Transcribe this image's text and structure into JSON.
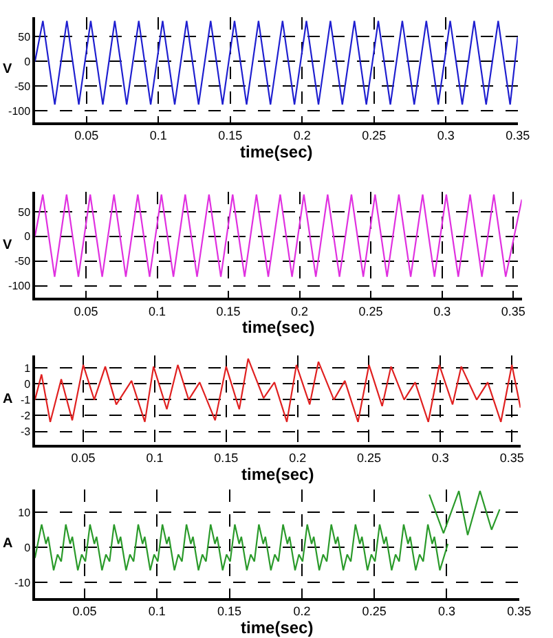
{
  "chart_data": [
    {
      "type": "line",
      "xlabel": "time(sec)",
      "ylabel": "V",
      "xlim": [
        0.0142,
        0.35
      ],
      "ylim": [
        -123,
        90
      ],
      "xticks": [
        0.05,
        0.1,
        0.15,
        0.2,
        0.25,
        0.3,
        0.35
      ],
      "yticks": [
        50,
        0,
        -50,
        -100
      ],
      "grid": true,
      "x": [
        0.0142,
        0.0197,
        0.028,
        0.0364,
        0.0447,
        0.053,
        0.0614,
        0.0697,
        0.078,
        0.0864,
        0.0947,
        0.103,
        0.1114,
        0.1197,
        0.128,
        0.1364,
        0.1447,
        0.153,
        0.1614,
        0.1697,
        0.178,
        0.1864,
        0.1947,
        0.203,
        0.2114,
        0.2197,
        0.228,
        0.2364,
        0.2447,
        0.253,
        0.2614,
        0.2697,
        0.278,
        0.2864,
        0.2947,
        0.303,
        0.3114,
        0.3197,
        0.328,
        0.3364,
        0.3447,
        0.35
      ],
      "series": [
        {
          "color": "#1f1fd0",
          "values": [
            0,
            82,
            -87,
            82,
            -87,
            82,
            -87,
            82,
            -87,
            82,
            -87,
            82,
            -87,
            82,
            -87,
            82,
            -87,
            82,
            -87,
            82,
            -87,
            82,
            -87,
            82,
            -87,
            82,
            -87,
            82,
            -87,
            82,
            -87,
            82,
            -87,
            82,
            -87,
            82,
            -87,
            82,
            -87,
            82,
            -87,
            50
          ]
        }
      ]
    },
    {
      "type": "line",
      "xlabel": "time(sec)",
      "ylabel": "V",
      "xlim": [
        0.0142,
        0.356
      ],
      "ylim": [
        -125,
        90
      ],
      "xticks": [
        0.05,
        0.1,
        0.15,
        0.2,
        0.25,
        0.3,
        0.35
      ],
      "yticks": [
        50,
        0,
        -50,
        -100
      ],
      "grid": true,
      "x": [
        0.0142,
        0.0197,
        0.028,
        0.0364,
        0.0447,
        0.053,
        0.0614,
        0.0697,
        0.078,
        0.0864,
        0.0947,
        0.103,
        0.1114,
        0.1197,
        0.128,
        0.1364,
        0.1447,
        0.153,
        0.1614,
        0.1697,
        0.178,
        0.1864,
        0.1947,
        0.203,
        0.2114,
        0.2197,
        0.228,
        0.2364,
        0.2447,
        0.253,
        0.2614,
        0.2697,
        0.278,
        0.2864,
        0.2947,
        0.303,
        0.3114,
        0.3197,
        0.328,
        0.3364,
        0.3447,
        0.356
      ],
      "series": [
        {
          "color": "#e030e0",
          "values": [
            0,
            85,
            -82,
            85,
            -82,
            85,
            -82,
            85,
            -82,
            85,
            -82,
            85,
            -82,
            85,
            -82,
            85,
            -82,
            85,
            -82,
            85,
            -82,
            85,
            -82,
            85,
            -82,
            85,
            -82,
            85,
            -82,
            85,
            -82,
            85,
            -82,
            85,
            -82,
            85,
            -82,
            85,
            -82,
            85,
            -82,
            75
          ]
        }
      ]
    },
    {
      "type": "line",
      "xlabel": "time(sec)",
      "ylabel": "A",
      "xlim": [
        0.0162,
        0.356
      ],
      "ylim": [
        -3.83,
        1.8
      ],
      "xticks": [
        0.05,
        0.1,
        0.15,
        0.2,
        0.25,
        0.3,
        0.35
      ],
      "yticks": [
        1,
        0,
        -1,
        -2,
        -3
      ],
      "grid": true,
      "x": [
        0.0162,
        0.0208,
        0.0269,
        0.0346,
        0.0423,
        0.05,
        0.0577,
        0.0654,
        0.0731,
        0.0838,
        0.0931,
        0.0992,
        0.1085,
        0.1162,
        0.1238,
        0.1315,
        0.1423,
        0.15,
        0.1592,
        0.1654,
        0.1762,
        0.1838,
        0.1925,
        0.1992,
        0.2085,
        0.2146,
        0.2254,
        0.2331,
        0.2423,
        0.25,
        0.2592,
        0.2654,
        0.2746,
        0.2823,
        0.2915,
        0.2992,
        0.3085,
        0.3146,
        0.3254,
        0.3331,
        0.3423,
        0.35,
        0.356
      ],
      "series": [
        {
          "color": "#e02020",
          "values": [
            -1,
            0.6,
            -2.4,
            0.3,
            -2.3,
            1.2,
            -1.0,
            1.1,
            -1.3,
            0.2,
            -2.4,
            1.1,
            -1.6,
            1.2,
            -1.0,
            0.1,
            -2.3,
            1.1,
            -1.6,
            1.6,
            -0.9,
            0.1,
            -2.4,
            1.2,
            -1.3,
            1.4,
            -1.0,
            0.2,
            -2.4,
            1.2,
            -1.4,
            1.1,
            -1.0,
            0.1,
            -2.4,
            1.2,
            -1.3,
            1.1,
            -1.0,
            0.1,
            -2.4,
            1.2,
            -1.5
          ]
        }
      ]
    },
    {
      "type": "line",
      "xlabel": "time(sec)",
      "ylabel": "A",
      "xlim": [
        0.0157,
        0.35
      ],
      "ylim": [
        -14.4,
        16.5
      ],
      "xticks": [
        0.05,
        0.1,
        0.15,
        0.2,
        0.25,
        0.3,
        0.35
      ],
      "yticks": [
        10,
        0,
        -10
      ],
      "grid": true,
      "series": [
        {
          "color": "#2a9a2a",
          "x": [
            0.0157,
            0.0203,
            0.0233,
            0.0248,
            0.0286,
            0.0313,
            0.0338,
            0.037,
            0.04,
            0.0415,
            0.0453,
            0.048,
            0.0505,
            0.0537,
            0.0567,
            0.0582,
            0.062,
            0.0647,
            0.0672,
            0.0703,
            0.0733,
            0.0748,
            0.0786,
            0.0813,
            0.0838,
            0.087,
            0.09,
            0.0915,
            0.0953,
            0.098,
            0.1005,
            0.1037,
            0.1067,
            0.1082,
            0.112,
            0.1147,
            0.1172,
            0.1203,
            0.1233,
            0.1248,
            0.1286,
            0.1313,
            0.1338,
            0.137,
            0.14,
            0.1415,
            0.1453,
            0.148,
            0.1505,
            0.1537,
            0.1567,
            0.1582,
            0.162,
            0.1647,
            0.1672,
            0.1703,
            0.1733,
            0.1748,
            0.1786,
            0.1813,
            0.1838,
            0.187,
            0.19,
            0.1915,
            0.1953,
            0.198,
            0.2005,
            0.2037,
            0.2067,
            0.2082,
            0.212,
            0.2147,
            0.2172,
            0.2203,
            0.2233,
            0.2248,
            0.2286,
            0.2313,
            0.2338,
            0.237,
            0.24,
            0.2415,
            0.2453,
            0.248,
            0.2505,
            0.2537,
            0.2567,
            0.2582,
            0.262,
            0.2647,
            0.2672,
            0.2703,
            0.2733,
            0.2748,
            0.2786,
            0.2813,
            0.2838,
            0.287,
            0.29,
            0.2915,
            0.2953,
            0.3008
          ],
          "values": [
            -3,
            6.5,
            1,
            3,
            -6.5,
            -2,
            -4,
            6.5,
            1,
            3,
            -6.5,
            -2,
            -4,
            6.5,
            1,
            3,
            -6.5,
            -2,
            -4,
            6.5,
            1,
            3,
            -6.5,
            -2,
            -4,
            6.5,
            1,
            3,
            -6.5,
            -2,
            -4,
            6.5,
            1,
            3,
            -6.5,
            -2,
            -4,
            6.5,
            1,
            3,
            -6.5,
            -2,
            -4,
            6.5,
            1,
            3,
            -6.5,
            -2,
            -4,
            6.5,
            1,
            3,
            -6.5,
            -2,
            -4,
            6.5,
            1,
            3,
            -6.5,
            -2,
            -4,
            6.5,
            1,
            3,
            -6.5,
            -2,
            -4,
            6.5,
            1,
            3,
            -6.5,
            -2,
            -4,
            6.5,
            1,
            3,
            -6.5,
            -2,
            -4,
            6.5,
            1,
            3,
            -6.5,
            -2,
            -4,
            6.5,
            1,
            3,
            -6.5,
            -2,
            -4,
            6.5,
            1,
            3,
            -6.5,
            -2,
            -4,
            6.5,
            1,
            3,
            -6.5,
            1
          ]
        },
        {
          "color": "#2a9a2a",
          "x": [
            0.288,
            0.2978,
            0.3084,
            0.3145,
            0.323,
            0.331,
            0.3366
          ],
          "values": [
            15,
            4,
            16,
            3.5,
            16,
            5,
            10.8
          ]
        }
      ]
    }
  ]
}
